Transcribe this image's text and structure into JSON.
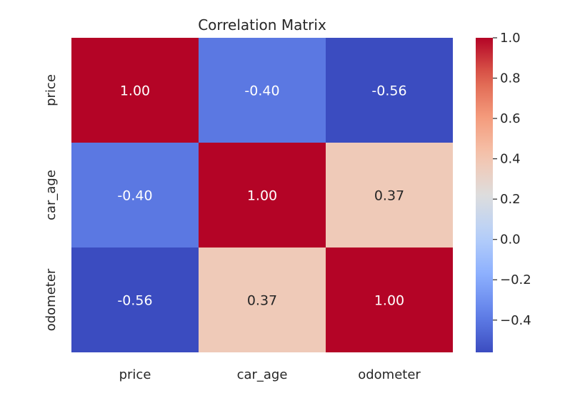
{
  "chart_data": {
    "type": "heatmap",
    "title": "Correlation Matrix",
    "xlabel": "",
    "ylabel": "",
    "x_categories": [
      "price",
      "car_age",
      "odometer"
    ],
    "y_categories": [
      "price",
      "car_age",
      "odometer"
    ],
    "values": [
      [
        1.0,
        -0.4,
        -0.56
      ],
      [
        -0.4,
        1.0,
        0.37
      ],
      [
        -0.56,
        0.37,
        1.0
      ]
    ],
    "value_labels": [
      [
        "1.00",
        "-0.40",
        "-0.56"
      ],
      [
        "-0.40",
        "1.00",
        "0.37"
      ],
      [
        "-0.56",
        "0.37",
        "1.00"
      ]
    ],
    "colormap": "coolwarm",
    "colorbar": {
      "range": [
        -0.56,
        1.0
      ],
      "ticks": [
        1.0,
        0.8,
        0.6,
        0.4,
        0.2,
        0.0,
        -0.2,
        -0.4
      ],
      "tick_labels": [
        "1.0",
        "0.8",
        "0.6",
        "0.4",
        "0.2",
        "0.0",
        "−0.2",
        "−0.4"
      ],
      "placement": "right"
    },
    "grid": false
  }
}
